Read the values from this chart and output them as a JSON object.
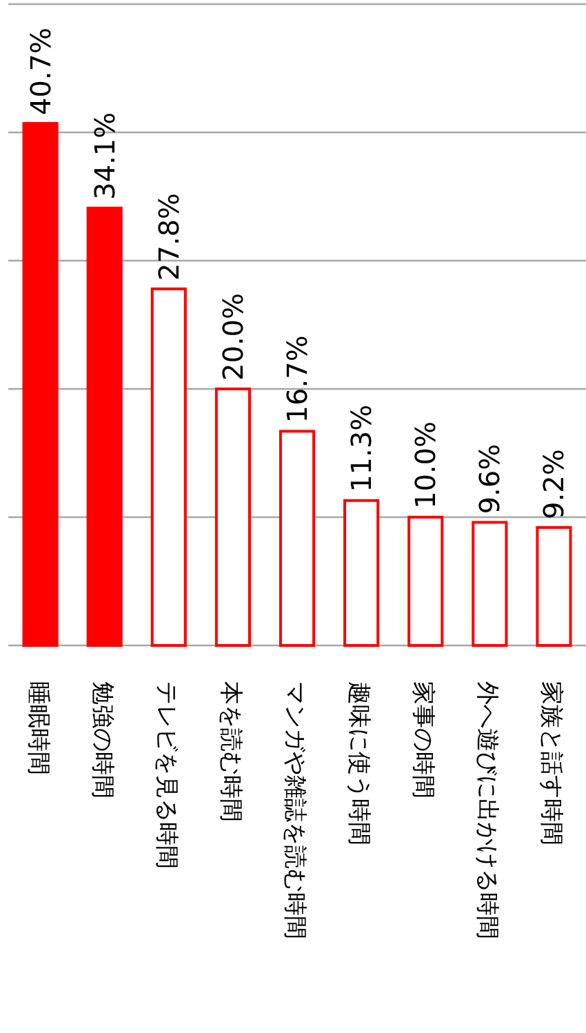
{
  "chart_data": {
    "type": "bar",
    "categories": [
      "睡眠時間",
      "勉強の時間",
      "テレビを見る時間",
      "本を読む時間",
      "マンガや雑誌を読む時間",
      "趣味に使う時間",
      "家事の時間",
      "外へ遊びに出かける時間",
      "家族と話す時間"
    ],
    "series": [
      {
        "color": "#ff0000",
        "colors": [
          "#ff0000",
          "#ff0000",
          "#ffffff",
          "#ffffff",
          "#ffffff",
          "#ffffff",
          "#ffffff",
          "#ffffff",
          "#ffffff"
        ],
        "values": [
          40.7,
          34.1,
          27.8,
          20.0,
          16.7,
          11.3,
          10.0,
          9.6,
          9.2
        ],
        "value_labels": [
          "40.7%",
          "34.1%",
          "27.8%",
          "20.0%",
          "16.7%",
          "11.3%",
          "10.0%",
          "9.6%",
          "9.2%"
        ]
      }
    ],
    "ylim": [
      0,
      50
    ],
    "yticks": [
      {
        "value": 0,
        "label": null
      },
      {
        "value": 10,
        "label": null
      },
      {
        "value": 20,
        "label": null
      },
      {
        "value": 30,
        "label": null
      },
      {
        "value": 40,
        "label": null
      },
      {
        "value": 50,
        "label": null
      }
    ],
    "grid": "y",
    "tick_labels": "x"
  }
}
